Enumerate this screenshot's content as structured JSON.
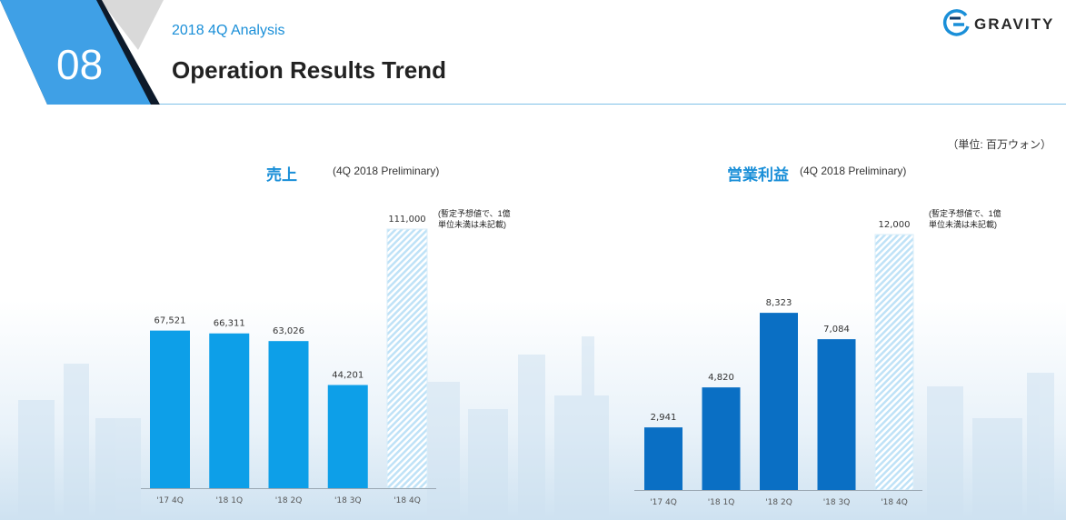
{
  "header": {
    "section_number": "08",
    "subtitle": "2018 4Q Analysis",
    "title": "Operation Results Trend",
    "logo_text": "GRAVITY"
  },
  "unit_label": "（単位: 百万ウォン）",
  "colors": {
    "accent": "#1a8fd8",
    "header_blue": "#3fa0e6",
    "bar_sales": "#0d9fe8",
    "bar_op": "#0a6fc4",
    "hatch_light": "#bfe2f7"
  },
  "chart_data": [
    {
      "type": "bar",
      "title": "売上",
      "subtitle": "(4Q 2018 Preliminary)",
      "categories": [
        "'17 4Q",
        "'18 1Q",
        "'18 2Q",
        "'18 3Q",
        "'18 4Q"
      ],
      "values": [
        67521,
        66311,
        63026,
        44201,
        111000
      ],
      "data_labels": [
        "67,521",
        "66,311",
        "63,026",
        "44,201",
        "111,000"
      ],
      "preliminary": [
        false,
        false,
        false,
        false,
        true
      ],
      "note": "(暫定予想値で、1億\n単位未満は未記載)",
      "ylim": [
        0,
        111000
      ],
      "grid": false
    },
    {
      "type": "bar",
      "title": "営業利益",
      "subtitle": "(4Q 2018 Preliminary)",
      "categories": [
        "'17 4Q",
        "'18 1Q",
        "'18 2Q",
        "'18 3Q",
        "'18 4Q"
      ],
      "values": [
        2941,
        4820,
        8323,
        7084,
        12000
      ],
      "data_labels": [
        "2,941",
        "4,820",
        "8,323",
        "7,084",
        "12,000"
      ],
      "preliminary": [
        false,
        false,
        false,
        false,
        true
      ],
      "note": "(暫定予想値で、1億\n単位未満は未記載)",
      "ylim": [
        0,
        12000
      ],
      "grid": false
    }
  ]
}
